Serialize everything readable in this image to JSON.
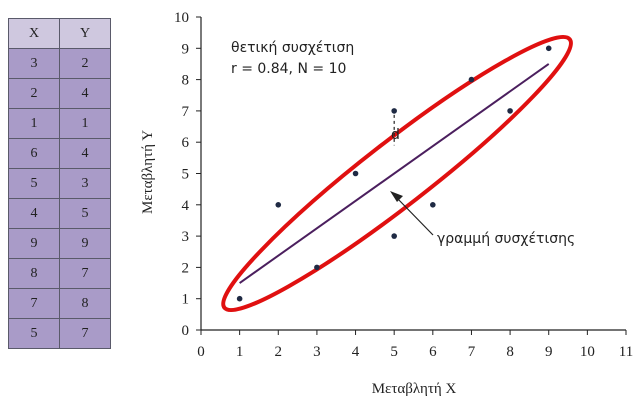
{
  "table": {
    "headers": [
      "X",
      "Y"
    ],
    "rows": [
      [
        "3",
        "2"
      ],
      [
        "2",
        "4"
      ],
      [
        "1",
        "1"
      ],
      [
        "6",
        "4"
      ],
      [
        "5",
        "3"
      ],
      [
        "4",
        "5"
      ],
      [
        "9",
        "9"
      ],
      [
        "8",
        "7"
      ],
      [
        "7",
        "8"
      ],
      [
        "5",
        "7"
      ]
    ]
  },
  "chart_data": {
    "type": "scatter",
    "xlabel": "Μεταβλητή Χ",
    "ylabel": "Μεταβλητή Υ",
    "xlim": [
      0,
      11
    ],
    "ylim": [
      0,
      10
    ],
    "xticks": [
      0,
      1,
      2,
      3,
      4,
      5,
      6,
      7,
      8,
      9,
      10,
      11
    ],
    "yticks": [
      0,
      1,
      2,
      3,
      4,
      5,
      6,
      7,
      8,
      9,
      10
    ],
    "grid": false,
    "points": [
      {
        "x": 3,
        "y": 2
      },
      {
        "x": 2,
        "y": 4
      },
      {
        "x": 1,
        "y": 1
      },
      {
        "x": 6,
        "y": 4
      },
      {
        "x": 5,
        "y": 3
      },
      {
        "x": 4,
        "y": 5
      },
      {
        "x": 9,
        "y": 9
      },
      {
        "x": 8,
        "y": 7
      },
      {
        "x": 7,
        "y": 8
      },
      {
        "x": 5,
        "y": 7
      }
    ],
    "regression_line": {
      "x": [
        1,
        9
      ],
      "y": [
        1.5,
        8.5
      ]
    },
    "annotation_title": "θετική συσχέτιση",
    "annotation_stats": "r = 0.84, N = 10",
    "line_label": "γραμμή συσχέτισης",
    "distance_label": "d",
    "colors": {
      "points": "#1f2a44",
      "line": "#4b1f5e",
      "ellipse": "#e01010",
      "axis": "#222222"
    }
  }
}
